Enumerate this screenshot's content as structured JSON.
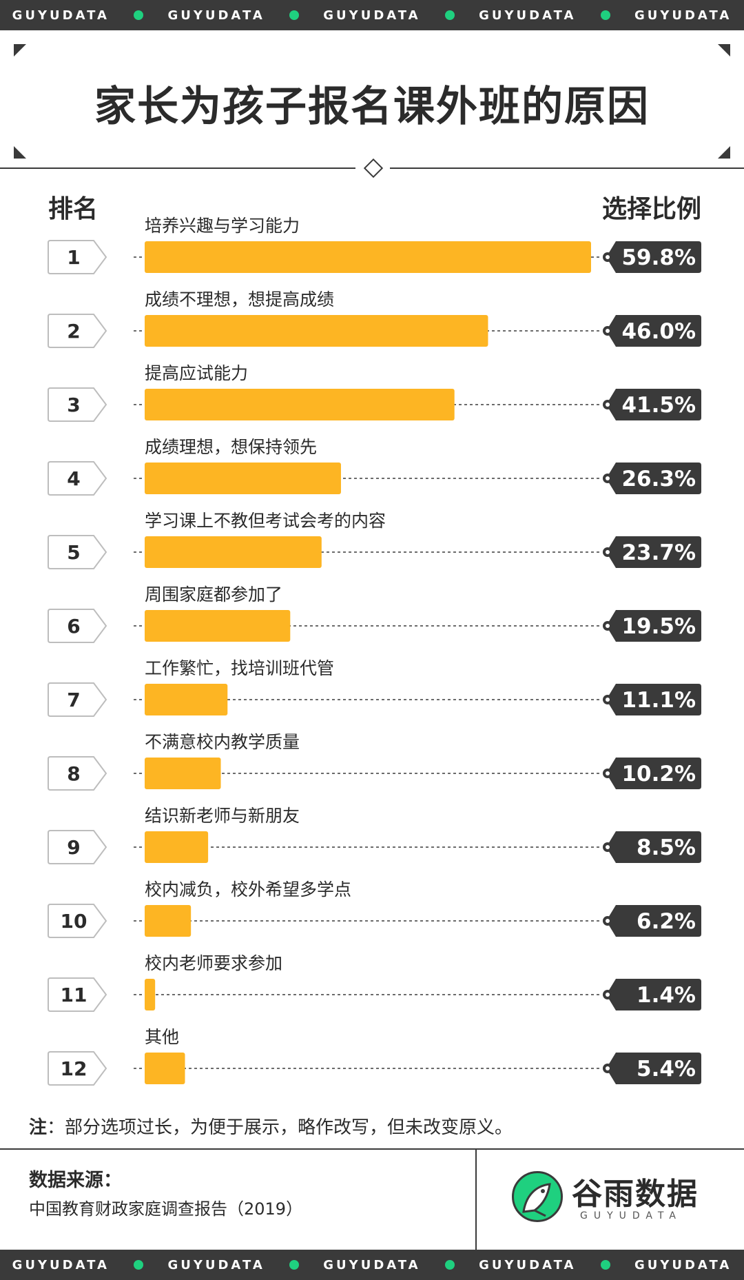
{
  "strip": {
    "words": [
      "GUYUDATA",
      "GUYUDATA",
      "GUYUDATA",
      "GUYUDATA",
      "GUYUDATA"
    ]
  },
  "title": "家长为孩子报名课外班的原因",
  "header": {
    "rank_label": "排名",
    "ratio_label": "选择比例"
  },
  "colors": {
    "bar": "#FDB523",
    "dark": "#3A3A3A",
    "brand_green": "#1FD07F",
    "white": "#FFFFFF"
  },
  "chart_data": {
    "type": "bar",
    "orientation": "horizontal",
    "title": "家长为孩子报名课外班的原因",
    "ranks": [
      "1",
      "2",
      "3",
      "4",
      "5",
      "6",
      "7",
      "8",
      "9",
      "10",
      "11",
      "12"
    ],
    "categories": [
      "培养兴趣与学习能力",
      "成绩不理想，想提高成绩",
      "提高应试能力",
      "成绩理想，想保持领先",
      "学习课上不教但考试会考的内容",
      "周围家庭都参加了",
      "工作繁忙，找培训班代管",
      "不满意校内教学质量",
      "结识新老师与新朋友",
      "校内减负，校外希望多学点",
      "校内老师要求参加",
      "其他"
    ],
    "values": [
      59.8,
      46.0,
      41.5,
      26.3,
      23.7,
      19.5,
      11.1,
      10.2,
      8.5,
      6.2,
      1.4,
      5.4
    ],
    "value_labels": [
      "59.8%",
      "46.0%",
      "41.5%",
      "26.3%",
      "23.7%",
      "19.5%",
      "11.1%",
      "10.2%",
      "8.5%",
      "6.2%",
      "1.4%",
      "5.4%"
    ],
    "unit": "%",
    "xlim": [
      0,
      59.8
    ],
    "grid": false
  },
  "note": {
    "label": "注",
    "text": "：部分选项过长，为便于展示，略作改写，但未改变原义。"
  },
  "source": {
    "label": "数据来源：",
    "text": "中国教育财政家庭调查报告（2019）"
  },
  "logo": {
    "name": "谷雨数据",
    "sub": "GUYUDATA",
    "icon": "bird-logo-icon"
  }
}
